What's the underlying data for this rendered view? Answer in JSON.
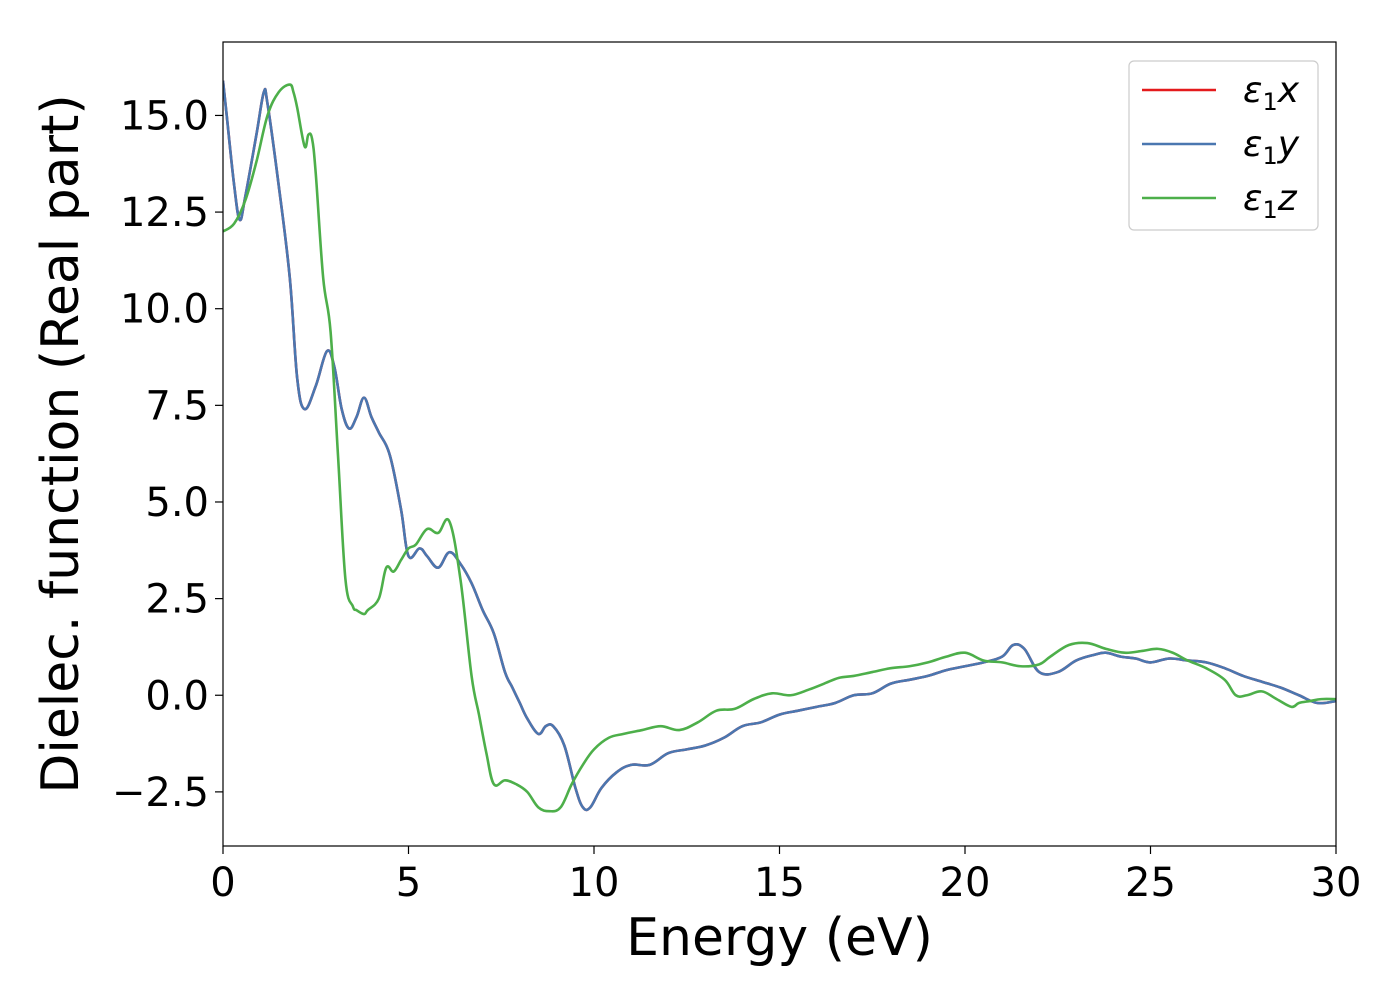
{
  "chart_data": {
    "type": "line",
    "title": "",
    "xlabel": "Energy (eV)",
    "ylabel": "Dielec. function (Real part)",
    "xlim": [
      0,
      30
    ],
    "ylim": [
      -3.9,
      16.9
    ],
    "xticks": [
      0,
      5,
      10,
      15,
      20,
      25,
      30
    ],
    "xtick_labels": [
      "0",
      "5",
      "10",
      "15",
      "20",
      "25",
      "30"
    ],
    "yticks": [
      -2.5,
      0.0,
      2.5,
      5.0,
      7.5,
      10.0,
      12.5,
      15.0
    ],
    "ytick_labels": [
      "−2.5",
      "0.0",
      "2.5",
      "5.0",
      "7.5",
      "10.0",
      "12.5",
      "15.0"
    ],
    "grid": false,
    "legend_position": "top-right",
    "series": [
      {
        "name": "ε1x",
        "legend_symbol": "ε",
        "legend_sub": "1",
        "legend_var": "x",
        "color": "#e41a1c",
        "x": [
          0.0,
          0.1,
          0.3,
          0.45,
          0.6,
          0.9,
          1.1,
          1.2,
          1.5,
          1.8,
          2.0,
          2.2,
          2.5,
          2.8,
          3.0,
          3.2,
          3.4,
          3.6,
          3.8,
          4.0,
          4.2,
          4.5,
          4.8,
          5.0,
          5.3,
          5.5,
          5.8,
          6.1,
          6.4,
          6.7,
          7.0,
          7.3,
          7.6,
          7.8,
          8.0,
          8.2,
          8.5,
          8.7,
          8.9,
          9.2,
          9.5,
          9.7,
          9.9,
          10.2,
          10.6,
          11.0,
          11.5,
          12.0,
          12.5,
          13.0,
          13.5,
          14.0,
          14.5,
          15.0,
          15.5,
          16.0,
          16.5,
          17.0,
          17.5,
          18.0,
          18.5,
          19.0,
          19.5,
          20.0,
          20.5,
          21.0,
          21.3,
          21.6,
          22.0,
          22.5,
          23.0,
          23.5,
          23.8,
          24.2,
          24.6,
          25.0,
          25.5,
          26.0,
          26.5,
          27.0,
          27.5,
          28.0,
          28.5,
          29.0,
          29.5,
          30.0
        ],
        "y": [
          15.9,
          15.0,
          13.2,
          12.3,
          12.9,
          14.5,
          15.6,
          15.3,
          13.2,
          10.8,
          8.2,
          7.4,
          8.0,
          8.9,
          8.5,
          7.4,
          6.9,
          7.2,
          7.7,
          7.2,
          6.8,
          6.2,
          4.8,
          3.6,
          3.8,
          3.6,
          3.3,
          3.7,
          3.4,
          2.9,
          2.2,
          1.6,
          0.6,
          0.2,
          -0.2,
          -0.6,
          -1.0,
          -0.8,
          -0.8,
          -1.3,
          -2.4,
          -2.9,
          -2.9,
          -2.4,
          -2.0,
          -1.8,
          -1.8,
          -1.5,
          -1.4,
          -1.3,
          -1.1,
          -0.8,
          -0.7,
          -0.5,
          -0.4,
          -0.3,
          -0.2,
          0.0,
          0.05,
          0.3,
          0.4,
          0.5,
          0.65,
          0.75,
          0.85,
          1.0,
          1.3,
          1.2,
          0.6,
          0.6,
          0.9,
          1.05,
          1.1,
          1.0,
          0.95,
          0.85,
          0.95,
          0.9,
          0.85,
          0.7,
          0.5,
          0.35,
          0.2,
          0.0,
          -0.2,
          -0.15
        ]
      },
      {
        "name": "ε1y",
        "legend_symbol": "ε",
        "legend_sub": "1",
        "legend_var": "y",
        "color": "#4a77b0",
        "x": [
          0.0,
          0.1,
          0.3,
          0.45,
          0.6,
          0.9,
          1.1,
          1.2,
          1.5,
          1.8,
          2.0,
          2.2,
          2.5,
          2.8,
          3.0,
          3.2,
          3.4,
          3.6,
          3.8,
          4.0,
          4.2,
          4.5,
          4.8,
          5.0,
          5.3,
          5.5,
          5.8,
          6.1,
          6.4,
          6.7,
          7.0,
          7.3,
          7.6,
          7.8,
          8.0,
          8.2,
          8.5,
          8.7,
          8.9,
          9.2,
          9.5,
          9.7,
          9.9,
          10.2,
          10.6,
          11.0,
          11.5,
          12.0,
          12.5,
          13.0,
          13.5,
          14.0,
          14.5,
          15.0,
          15.5,
          16.0,
          16.5,
          17.0,
          17.5,
          18.0,
          18.5,
          19.0,
          19.5,
          20.0,
          20.5,
          21.0,
          21.3,
          21.6,
          22.0,
          22.5,
          23.0,
          23.5,
          23.8,
          24.2,
          24.6,
          25.0,
          25.5,
          26.0,
          26.5,
          27.0,
          27.5,
          28.0,
          28.5,
          29.0,
          29.5,
          30.0
        ],
        "y": [
          15.9,
          15.0,
          13.2,
          12.3,
          12.9,
          14.5,
          15.6,
          15.3,
          13.2,
          10.8,
          8.2,
          7.4,
          8.0,
          8.9,
          8.5,
          7.4,
          6.9,
          7.2,
          7.7,
          7.2,
          6.8,
          6.2,
          4.8,
          3.6,
          3.8,
          3.6,
          3.3,
          3.7,
          3.4,
          2.9,
          2.2,
          1.6,
          0.6,
          0.2,
          -0.2,
          -0.6,
          -1.0,
          -0.8,
          -0.8,
          -1.3,
          -2.4,
          -2.9,
          -2.9,
          -2.4,
          -2.0,
          -1.8,
          -1.8,
          -1.5,
          -1.4,
          -1.3,
          -1.1,
          -0.8,
          -0.7,
          -0.5,
          -0.4,
          -0.3,
          -0.2,
          0.0,
          0.05,
          0.3,
          0.4,
          0.5,
          0.65,
          0.75,
          0.85,
          1.0,
          1.3,
          1.2,
          0.6,
          0.6,
          0.9,
          1.05,
          1.1,
          1.0,
          0.95,
          0.85,
          0.95,
          0.9,
          0.85,
          0.7,
          0.5,
          0.35,
          0.2,
          0.0,
          -0.2,
          -0.15
        ]
      },
      {
        "name": "ε1z",
        "legend_symbol": "ε",
        "legend_sub": "1",
        "legend_var": "z",
        "color": "#4daf4a",
        "x": [
          0.0,
          0.3,
          0.6,
          0.9,
          1.2,
          1.5,
          1.8,
          1.9,
          2.0,
          2.2,
          2.3,
          2.4,
          2.5,
          2.7,
          2.9,
          3.1,
          3.3,
          3.5,
          3.6,
          3.8,
          3.9,
          4.2,
          4.4,
          4.6,
          4.8,
          5.0,
          5.2,
          5.5,
          5.8,
          6.1,
          6.4,
          6.7,
          6.9,
          7.1,
          7.3,
          7.6,
          7.9,
          8.2,
          8.5,
          8.8,
          9.1,
          9.4,
          9.7,
          10.0,
          10.4,
          10.8,
          11.3,
          11.8,
          12.3,
          12.8,
          13.3,
          13.8,
          14.3,
          14.8,
          15.3,
          15.8,
          16.2,
          16.6,
          17.0,
          17.5,
          18.0,
          18.5,
          19.0,
          19.5,
          20.0,
          20.5,
          21.0,
          21.5,
          22.0,
          22.3,
          22.8,
          23.3,
          23.8,
          24.3,
          24.8,
          25.2,
          25.6,
          26.0,
          26.5,
          27.0,
          27.3,
          27.6,
          28.0,
          28.4,
          28.8,
          29.0,
          29.3,
          29.6,
          30.0
        ],
        "y": [
          12.0,
          12.2,
          12.8,
          13.8,
          15.0,
          15.6,
          15.8,
          15.6,
          15.2,
          14.2,
          14.5,
          14.4,
          13.5,
          10.8,
          9.4,
          6.2,
          3.0,
          2.3,
          2.2,
          2.1,
          2.2,
          2.5,
          3.3,
          3.2,
          3.5,
          3.8,
          3.9,
          4.3,
          4.2,
          4.5,
          3.0,
          0.5,
          -0.5,
          -1.5,
          -2.3,
          -2.2,
          -2.3,
          -2.5,
          -2.9,
          -3.0,
          -2.9,
          -2.3,
          -1.8,
          -1.4,
          -1.1,
          -1.0,
          -0.9,
          -0.8,
          -0.9,
          -0.7,
          -0.4,
          -0.35,
          -0.1,
          0.05,
          0.0,
          0.15,
          0.3,
          0.45,
          0.5,
          0.6,
          0.7,
          0.75,
          0.85,
          1.0,
          1.1,
          0.9,
          0.85,
          0.75,
          0.8,
          1.0,
          1.3,
          1.35,
          1.2,
          1.1,
          1.15,
          1.2,
          1.1,
          0.9,
          0.7,
          0.4,
          0.0,
          0.0,
          0.1,
          -0.1,
          -0.3,
          -0.2,
          -0.15,
          -0.1,
          -0.1
        ]
      }
    ]
  }
}
